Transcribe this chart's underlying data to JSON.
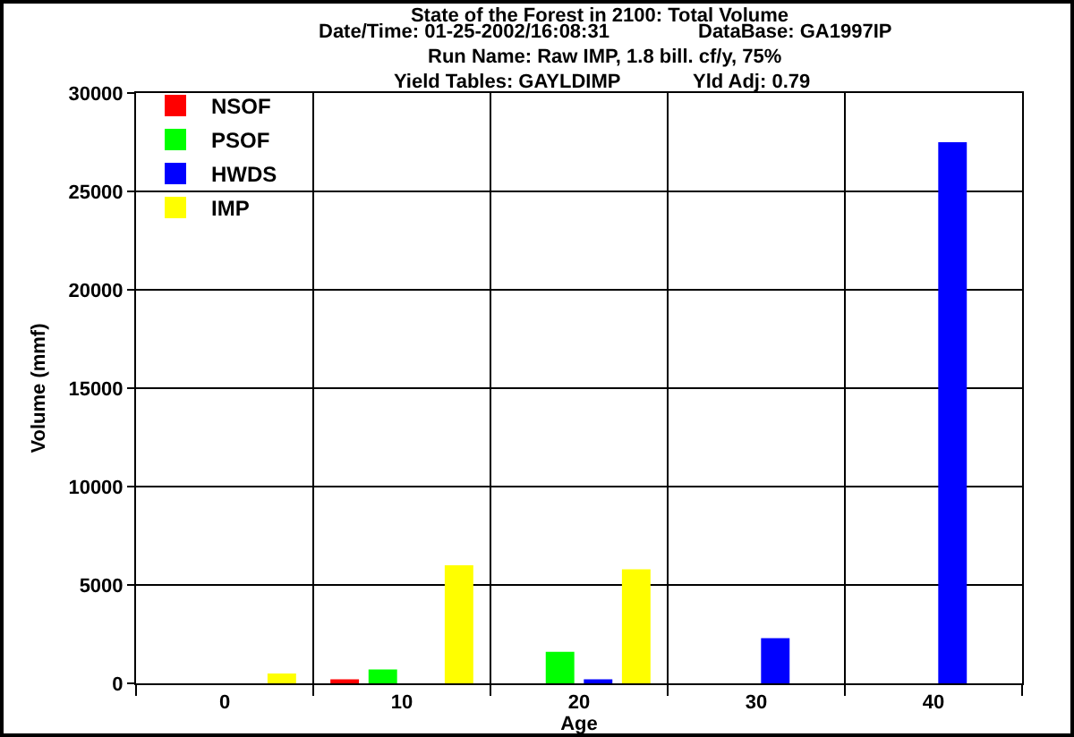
{
  "chart_data": {
    "type": "bar",
    "title": "State of the Forest in 2100: Total Volume",
    "annotations": [
      "Date/Time: 01-25-2002/16:08:31",
      "DataBase: GA1997IP",
      "Run Name: Raw IMP, 1.8 bill. cf/y, 75%",
      "Yield Tables: GAYLDIMP",
      "Yld Adj: 0.79"
    ],
    "xlabel": "Age",
    "ylabel": "Volume (mmf)",
    "categories": [
      "0",
      "10",
      "20",
      "30",
      "40"
    ],
    "series": [
      {
        "name": "NSOF",
        "color": "#ff0000",
        "values": [
          null,
          200,
          null,
          null,
          null
        ]
      },
      {
        "name": "PSOF",
        "color": "#00ff00",
        "values": [
          null,
          700,
          1600,
          null,
          null
        ]
      },
      {
        "name": "HWDS",
        "color": "#0000ff",
        "values": [
          null,
          null,
          200,
          2300,
          27500
        ]
      },
      {
        "name": "IMP",
        "color": "#ffff00",
        "values": [
          500,
          6000,
          5800,
          null,
          null
        ]
      }
    ],
    "ylim": [
      0,
      30000
    ],
    "yticks": [
      0,
      5000,
      10000,
      15000,
      20000,
      25000,
      30000
    ],
    "grid": true,
    "legend": "top left"
  }
}
